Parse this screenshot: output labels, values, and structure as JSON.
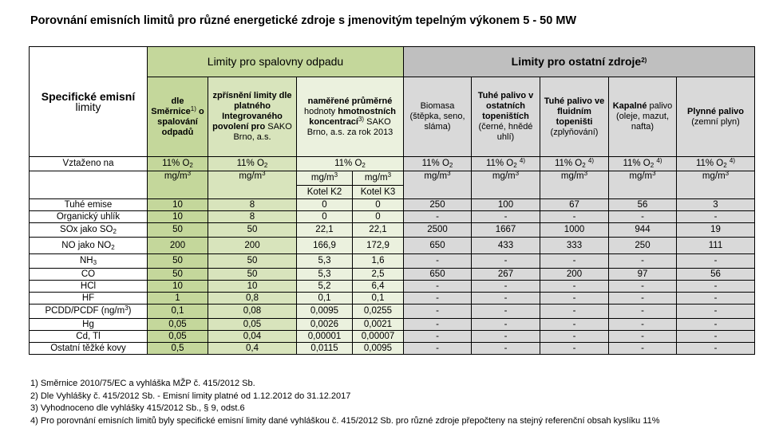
{
  "title": "Porovnání emisních limitů pro různé energetické zdroje s jmenovitým tepelným výkonem 5 - 50 MW",
  "section_waste": "Limity pro spalovny odpadu",
  "section_other": "Limity pro ostatní zdroje",
  "section_other_sup": "2)",
  "spec_line1": "Specifické emisní",
  "spec_line2": "limity",
  "col_headers": {
    "c1": {
      "bold": "dle Směrnice",
      "sup": "1)",
      "bold2": "o spalování odpadů"
    },
    "c2": {
      "bold": "zpřísnění limity dle platného Integrovaného povolení pro",
      "normal": "SAKO Brno, a.s."
    },
    "c3": {
      "bold1": "naměřené průměrné",
      "normal1": "hodnoty",
      "bold2": "hmotnostních koncentrací",
      "sup": "3)",
      "normal2": "SAKO Brno, a.s. za rok 2013"
    },
    "c4": {
      "normal": "Biomasa (štěpka, seno, sláma)"
    },
    "c5": {
      "bold": "Tuhé palivo v ostatních topeništích",
      "normal": "(černé, hnědé uhlí)"
    },
    "c6": {
      "bold": "Tuhé palivo ve fluidním topeništi",
      "normal": "(zplyňování)"
    },
    "c7": {
      "bold": "Kapalné",
      "normal": "palivo (oleje, mazut, nafta)"
    },
    "c8": {
      "bold": "Plynné palivo",
      "normal": "(zemní plyn)"
    }
  },
  "ref_label": "Vztaženo na",
  "ref_o2": "11% O",
  "o2_sub": "2",
  "note4_sup": "4)",
  "unit": "mg/m",
  "unit_sup": "3",
  "kotel_k2": "Kotel K2",
  "kotel_k3": "Kotel K3",
  "rows": [
    {
      "label": "Tuhé emise",
      "vals": [
        "10",
        "8",
        "0",
        "0",
        "250",
        "100",
        "67",
        "56",
        "3"
      ]
    },
    {
      "label": "Organický uhlík",
      "vals": [
        "10",
        "8",
        "0",
        "0",
        "-",
        "-",
        "-",
        "-",
        "-"
      ]
    },
    {
      "label": "SOx jako SO",
      "sub": "2",
      "vals": [
        "50",
        "50",
        "22,1",
        "22,1",
        "2500",
        "1667",
        "1000",
        "944",
        "19"
      ]
    },
    {
      "label": "NO jako NO",
      "sub": "2",
      "vals": [
        "200",
        "200",
        "166,9",
        "172,9",
        "650",
        "433",
        "333",
        "250",
        "111"
      ]
    },
    {
      "label": "NH",
      "sub": "3",
      "vals": [
        "50",
        "50",
        "5,3",
        "1,6",
        "-",
        "-",
        "-",
        "-",
        "-"
      ]
    },
    {
      "label": "CO",
      "vals": [
        "50",
        "50",
        "5,3",
        "2,5",
        "650",
        "267",
        "200",
        "97",
        "56"
      ]
    },
    {
      "label": "HCl",
      "vals": [
        "10",
        "10",
        "5,2",
        "6,4",
        "-",
        "-",
        "-",
        "-",
        "-"
      ]
    },
    {
      "label": "HF",
      "vals": [
        "1",
        "0,8",
        "0,1",
        "0,1",
        "-",
        "-",
        "-",
        "-",
        "-"
      ]
    },
    {
      "label": "PCDD/PCDF  (ng/m",
      "sup": "3",
      "suffix": ")",
      "vals": [
        "0,1",
        "0,08",
        "0,0095",
        "0,0255",
        "-",
        "-",
        "-",
        "-",
        "-"
      ]
    },
    {
      "label": "Hg",
      "vals": [
        "0,05",
        "0,05",
        "0,0026",
        "0,0021",
        "-",
        "-",
        "-",
        "-",
        "-"
      ]
    },
    {
      "label": "Cd, Tl",
      "vals": [
        "0,05",
        "0,04",
        "0,00001",
        "0,00007",
        "-",
        "-",
        "-",
        "-",
        "-"
      ]
    },
    {
      "label": "Ostatní těžké kovy",
      "vals": [
        "0,5",
        "0,4",
        "0,0115",
        "0,0095",
        "-",
        "-",
        "-",
        "-",
        "-"
      ]
    }
  ],
  "notes": [
    "1) Směrnice 2010/75/EC a vyhláška MŽP č. 415/2012 Sb.",
    "2) Dle Vyhlášky č. 415/2012 Sb. - Emisní limity platné od 1.12.2012 do 31.12.2017",
    "3) Vyhodnoceno dle vyhlášky 415/2012 Sb., § 9, odst.6",
    "4) Pro porovnání emisních limitů byly specifické emisní limity dané vyhláškou č. 415/2012 Sb. pro různé zdroje  přepočteny na stejný referenční obsah kyslíku 11%"
  ]
}
